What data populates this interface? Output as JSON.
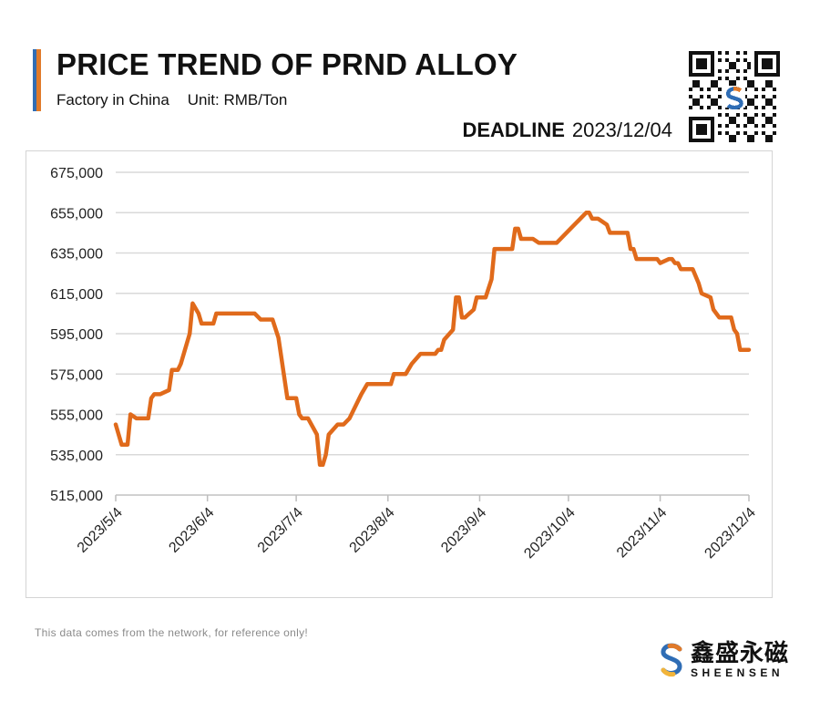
{
  "header": {
    "title": "PRICE TREND OF PRND ALLOY",
    "subtitle_left": "Factory in China",
    "subtitle_right": "Unit: RMB/Ton",
    "deadline_label": "DEADLINE",
    "deadline_date": "2023/12/04"
  },
  "footer": {
    "note": "This data comes from the network, for reference only!",
    "brand_cn": "鑫盛永磁",
    "brand_en": "SHEENSEN"
  },
  "colors": {
    "line": "#E06A1B",
    "grid": "#d9d9d9",
    "accent_blue": "#2f6db5",
    "accent_orange": "#e07a2a"
  },
  "icons": {
    "qr": "qr-code-icon",
    "logo": "sheensen-logo-icon"
  },
  "chart_data": {
    "type": "line",
    "title": "PRICE TREND OF PRND ALLOY",
    "ylim": [
      515000,
      675000
    ],
    "yticks": [
      515000,
      535000,
      555000,
      575000,
      595000,
      615000,
      635000,
      655000,
      675000
    ],
    "ytick_labels": [
      "515,000",
      "535,000",
      "555,000",
      "575,000",
      "595,000",
      "615,000",
      "635,000",
      "655,000",
      "675,000"
    ],
    "xlim": [
      "2023-05-04",
      "2023-12-04"
    ],
    "xtick_labels": [
      "2023/5/4",
      "2023/6/4",
      "2023/7/4",
      "2023/8/4",
      "2023/9/4",
      "2023/10/4",
      "2023/11/4",
      "2023/12/4"
    ],
    "xtick_dates": [
      "2023-05-04",
      "2023-06-04",
      "2023-07-04",
      "2023-08-04",
      "2023-09-04",
      "2023-10-04",
      "2023-11-04",
      "2023-12-04"
    ],
    "grid": true,
    "series": [
      {
        "points": [
          [
            "2023-05-04",
            550000
          ],
          [
            "2023-05-06",
            540000
          ],
          [
            "2023-05-08",
            540000
          ],
          [
            "2023-05-09",
            555000
          ],
          [
            "2023-05-11",
            553000
          ],
          [
            "2023-05-15",
            553000
          ],
          [
            "2023-05-16",
            563000
          ],
          [
            "2023-05-17",
            565000
          ],
          [
            "2023-05-19",
            565000
          ],
          [
            "2023-05-22",
            567000
          ],
          [
            "2023-05-23",
            577000
          ],
          [
            "2023-05-25",
            577000
          ],
          [
            "2023-05-26",
            580000
          ],
          [
            "2023-05-29",
            595000
          ],
          [
            "2023-05-30",
            610000
          ],
          [
            "2023-06-01",
            605000
          ],
          [
            "2023-06-02",
            600000
          ],
          [
            "2023-06-06",
            600000
          ],
          [
            "2023-06-07",
            605000
          ],
          [
            "2023-06-20",
            605000
          ],
          [
            "2023-06-22",
            602000
          ],
          [
            "2023-06-26",
            602000
          ],
          [
            "2023-06-28",
            593000
          ],
          [
            "2023-07-01",
            563000
          ],
          [
            "2023-07-04",
            563000
          ],
          [
            "2023-07-05",
            555000
          ],
          [
            "2023-07-06",
            553000
          ],
          [
            "2023-07-08",
            553000
          ],
          [
            "2023-07-11",
            545000
          ],
          [
            "2023-07-12",
            530000
          ],
          [
            "2023-07-13",
            530000
          ],
          [
            "2023-07-14",
            535000
          ],
          [
            "2023-07-15",
            545000
          ],
          [
            "2023-07-18",
            550000
          ],
          [
            "2023-07-20",
            550000
          ],
          [
            "2023-07-22",
            553000
          ],
          [
            "2023-07-26",
            565000
          ],
          [
            "2023-07-28",
            570000
          ],
          [
            "2023-08-05",
            570000
          ],
          [
            "2023-08-06",
            575000
          ],
          [
            "2023-08-10",
            575000
          ],
          [
            "2023-08-12",
            580000
          ],
          [
            "2023-08-15",
            585000
          ],
          [
            "2023-08-20",
            585000
          ],
          [
            "2023-08-21",
            587000
          ],
          [
            "2023-08-22",
            587000
          ],
          [
            "2023-08-23",
            592000
          ],
          [
            "2023-08-26",
            597000
          ],
          [
            "2023-08-27",
            613000
          ],
          [
            "2023-08-28",
            613000
          ],
          [
            "2023-08-29",
            603000
          ],
          [
            "2023-08-30",
            603000
          ],
          [
            "2023-09-02",
            607000
          ],
          [
            "2023-09-03",
            613000
          ],
          [
            "2023-09-06",
            613000
          ],
          [
            "2023-09-08",
            622000
          ],
          [
            "2023-09-09",
            637000
          ],
          [
            "2023-09-11",
            637000
          ],
          [
            "2023-09-15",
            637000
          ],
          [
            "2023-09-16",
            647000
          ],
          [
            "2023-09-17",
            647000
          ],
          [
            "2023-09-18",
            642000
          ],
          [
            "2023-09-22",
            642000
          ],
          [
            "2023-09-24",
            640000
          ],
          [
            "2023-09-30",
            640000
          ],
          [
            "2023-10-10",
            655000
          ],
          [
            "2023-10-11",
            655000
          ],
          [
            "2023-10-12",
            652000
          ],
          [
            "2023-10-14",
            652000
          ],
          [
            "2023-10-17",
            649000
          ],
          [
            "2023-10-18",
            645000
          ],
          [
            "2023-10-24",
            645000
          ],
          [
            "2023-10-25",
            637000
          ],
          [
            "2023-10-26",
            637000
          ],
          [
            "2023-10-27",
            632000
          ],
          [
            "2023-11-03",
            632000
          ],
          [
            "2023-11-04",
            630000
          ],
          [
            "2023-11-07",
            632000
          ],
          [
            "2023-11-08",
            632000
          ],
          [
            "2023-11-09",
            630000
          ],
          [
            "2023-11-10",
            630000
          ],
          [
            "2023-11-11",
            627000
          ],
          [
            "2023-11-15",
            627000
          ],
          [
            "2023-11-17",
            620000
          ],
          [
            "2023-11-18",
            615000
          ],
          [
            "2023-11-21",
            613000
          ],
          [
            "2023-11-22",
            607000
          ],
          [
            "2023-11-24",
            603000
          ],
          [
            "2023-11-28",
            603000
          ],
          [
            "2023-11-29",
            597000
          ],
          [
            "2023-11-30",
            595000
          ],
          [
            "2023-12-01",
            587000
          ],
          [
            "2023-12-04",
            587000
          ]
        ]
      }
    ]
  }
}
